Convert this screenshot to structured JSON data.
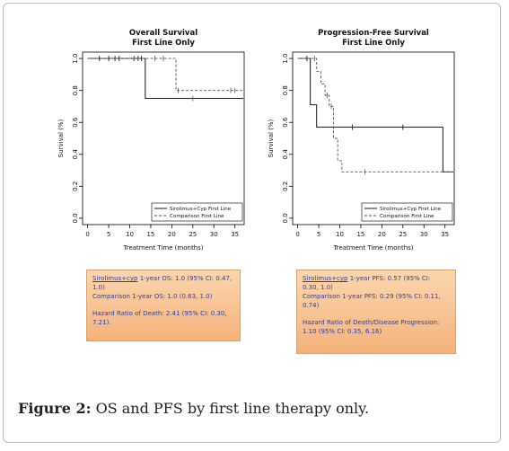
{
  "chart_data": [
    {
      "type": "line",
      "title": "Overall Survival",
      "subtitle": "First Line Only",
      "xlabel": "Treatment Time (months)",
      "ylabel": "Survival (%)",
      "xlim": [
        0,
        35
      ],
      "ylim": [
        0,
        1.0
      ],
      "xticks": [
        "0",
        "5",
        "10",
        "15",
        "20",
        "25",
        "30",
        "35"
      ],
      "yticks": [
        "0.0",
        "0.2",
        "0.4",
        "0.6",
        "0.8",
        "1.0"
      ],
      "legend_position": "bottom-right",
      "series": [
        {
          "name": "Sirolimus+Cyp First Line",
          "line_style": "solid",
          "color": "#000000",
          "steps": [
            [
              0,
              1.0
            ],
            [
              13.7,
              1.0
            ],
            [
              13.7,
              0.75
            ],
            [
              37,
              0.75
            ]
          ],
          "censored": [
            [
              2.8,
              1.0
            ],
            [
              5,
              1.0
            ],
            [
              6.5,
              1.0
            ],
            [
              7.5,
              1.0
            ],
            [
              11,
              1.0
            ],
            [
              12,
              1.0
            ],
            [
              12.8,
              1.0
            ]
          ]
        },
        {
          "name": "Comparison First Line",
          "line_style": "dashed",
          "color": "#555555",
          "steps": [
            [
              0,
              1.0
            ],
            [
              21,
              1.0
            ],
            [
              21,
              0.8
            ],
            [
              37,
              0.8
            ]
          ],
          "censored": [
            [
              16,
              1.0
            ],
            [
              18,
              1.0
            ],
            [
              21.5,
              0.8
            ],
            [
              25,
              0.75
            ],
            [
              34,
              0.8
            ],
            [
              35,
              0.8
            ]
          ]
        }
      ]
    },
    {
      "type": "line",
      "title": "Progression-Free Survival",
      "subtitle": "First Line Only",
      "xlabel": "Treatment Time (months)",
      "ylabel": "Survival (%)",
      "xlim": [
        0,
        35
      ],
      "ylim": [
        0,
        1.0
      ],
      "xticks": [
        "0",
        "5",
        "10",
        "15",
        "20",
        "25",
        "30",
        "35"
      ],
      "yticks": [
        "0.0",
        "0.2",
        "0.4",
        "0.6",
        "0.8",
        "1.0"
      ],
      "legend_position": "bottom-right",
      "series": [
        {
          "name": "Sirolimus+Cyp First Line",
          "line_style": "solid",
          "color": "#000000",
          "steps": [
            [
              0,
              1.0
            ],
            [
              3,
              1.0
            ],
            [
              3,
              0.71
            ],
            [
              4.5,
              0.71
            ],
            [
              4.5,
              0.57
            ],
            [
              34.5,
              0.57
            ],
            [
              34.5,
              0.29
            ],
            [
              37,
              0.29
            ]
          ],
          "censored": [
            [
              2.2,
              1.0
            ],
            [
              13,
              0.57
            ],
            [
              25,
              0.57
            ]
          ]
        },
        {
          "name": "Comparison First Line",
          "line_style": "dashed",
          "color": "#555555",
          "steps": [
            [
              0,
              1.0
            ],
            [
              4.5,
              1.0
            ],
            [
              4.5,
              0.92
            ],
            [
              5.5,
              0.92
            ],
            [
              5.5,
              0.84
            ],
            [
              6.5,
              0.84
            ],
            [
              6.5,
              0.77
            ],
            [
              7.5,
              0.77
            ],
            [
              7.5,
              0.7
            ],
            [
              8.5,
              0.7
            ],
            [
              8.5,
              0.5
            ],
            [
              9.5,
              0.5
            ],
            [
              9.5,
              0.36
            ],
            [
              10.5,
              0.36
            ],
            [
              10.5,
              0.29
            ],
            [
              37,
              0.29
            ]
          ],
          "censored": [
            [
              4,
              1.0
            ],
            [
              7,
              0.77
            ],
            [
              8,
              0.7
            ],
            [
              16,
              0.29
            ]
          ]
        }
      ]
    }
  ],
  "boxes": {
    "left": {
      "line1a": "Sirolimus+cyp",
      "line1b": " 1-year OS: 1.0 (95% CI: 0.47,",
      "line2": "1.0)",
      "line3": "Comparison 1-year OS: 1.0 (0.63, 1.0)",
      "line4": "Hazard Ratio of Death: 2.41 (95% CI: 0.30,",
      "line5": "7.21)."
    },
    "right": {
      "line1a": "Sirolimus+cyp",
      "line1b": " 1-year PFS: 0.57 (95% CI:",
      "line2": "0.30, 1.0)",
      "line3": "Comparison 1-year PFS: 0.29 (95% CI: 0.11,",
      "line4": "0.74)",
      "line5": "Hazard Ratio of Death/Disease Progression:",
      "line6": "1.10 (95% CI: 0.35, 6.16)"
    }
  },
  "caption": {
    "label": "Figure 2:",
    "text": " OS and PFS by first line therapy only."
  }
}
